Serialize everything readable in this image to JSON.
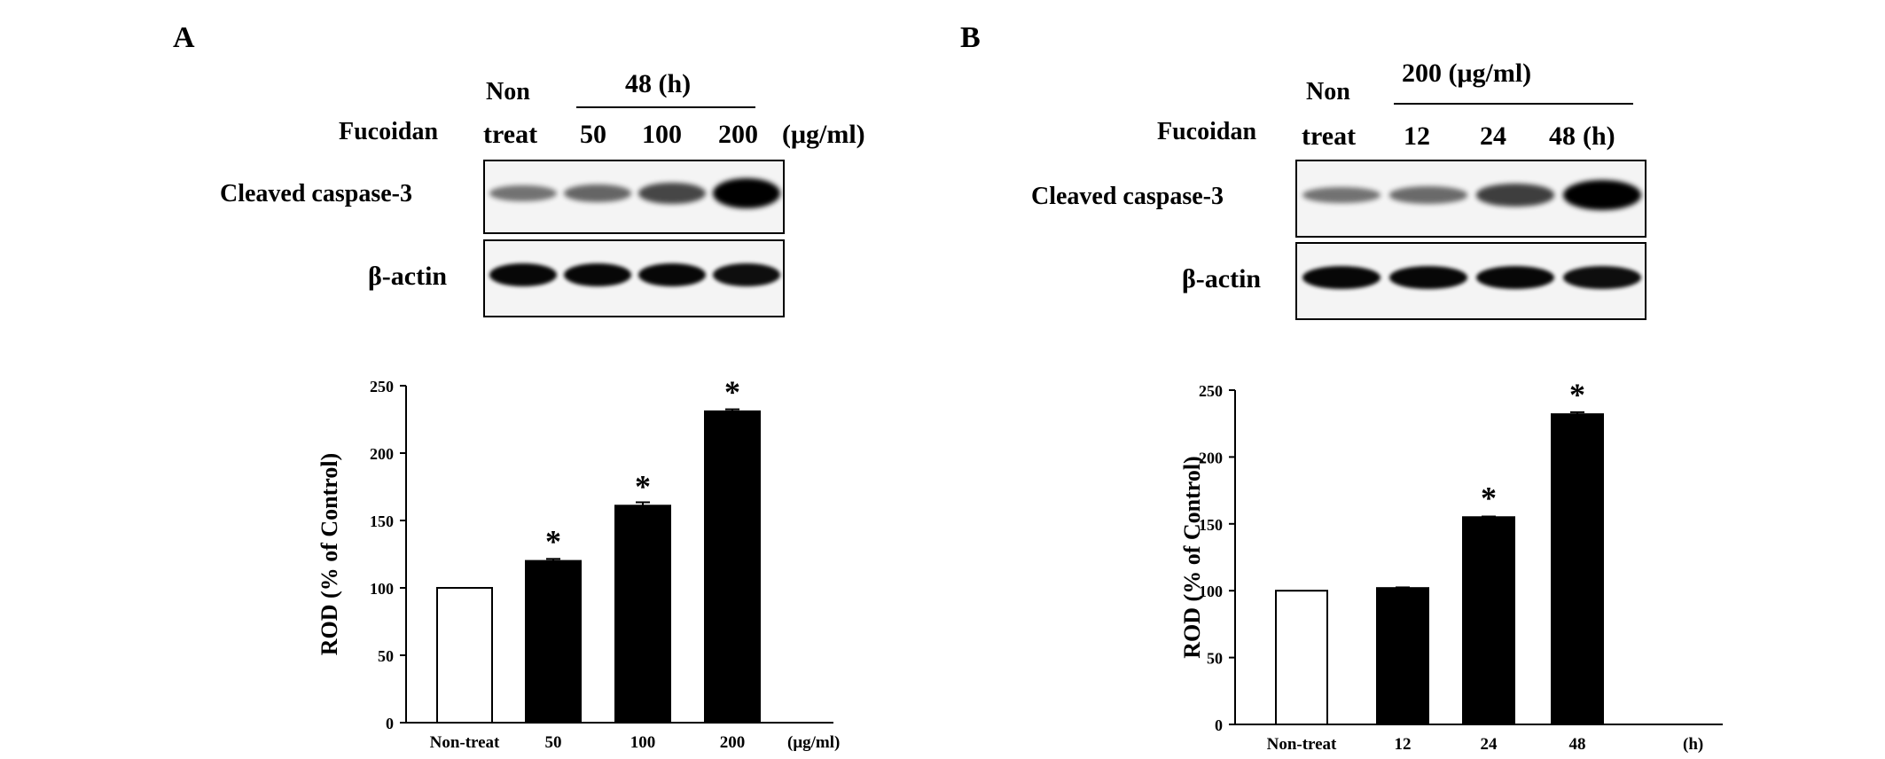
{
  "panels": [
    {
      "id": "A",
      "label": "A",
      "blot": {
        "group_header": "48 (h)",
        "row_label": "Fucoidan",
        "unit": "(μg/ml)",
        "lanes": [
          {
            "top": "Non",
            "bottom": "treat"
          },
          {
            "top": "",
            "bottom": "50"
          },
          {
            "top": "",
            "bottom": "100"
          },
          {
            "top": "",
            "bottom": "200"
          }
        ],
        "bands": [
          {
            "name": "Cleaved caspase-3",
            "intensities": [
              0.28,
              0.35,
              0.55,
              1.0
            ]
          },
          {
            "name": "β-actin",
            "intensities": [
              0.95,
              0.95,
              0.95,
              0.9
            ]
          }
        ]
      }
    },
    {
      "id": "B",
      "label": "B",
      "blot": {
        "group_header": "200 (μg/ml)",
        "row_label": "Fucoidan",
        "unit": "(h)",
        "lanes": [
          {
            "top": "Non",
            "bottom": "treat"
          },
          {
            "top": "",
            "bottom": "12"
          },
          {
            "top": "",
            "bottom": "24"
          },
          {
            "top": "",
            "bottom": "48"
          }
        ],
        "bands": [
          {
            "name": "Cleaved caspase-3",
            "intensities": [
              0.28,
              0.33,
              0.6,
              1.0
            ]
          },
          {
            "name": "β-actin",
            "intensities": [
              0.95,
              0.95,
              0.95,
              0.9
            ]
          }
        ]
      }
    }
  ],
  "chart_data": [
    {
      "type": "bar",
      "categories": [
        "Non-treat",
        "50",
        "100",
        "200"
      ],
      "x_unit": "(μg/ml)",
      "values": [
        100,
        120,
        161,
        231
      ],
      "errors": [
        0,
        1.5,
        2.5,
        1.5
      ],
      "significant": [
        false,
        true,
        true,
        true
      ],
      "significance_marker": "*",
      "fills": [
        "#ffffff",
        "#000000",
        "#000000",
        "#000000"
      ],
      "ylabel": "ROD (% of Control)",
      "ylim": [
        0,
        250
      ],
      "yticks": [
        0,
        50,
        100,
        150,
        200,
        250
      ]
    },
    {
      "type": "bar",
      "categories": [
        "Non-treat",
        "12",
        "24",
        "48"
      ],
      "x_unit": "(h)",
      "values": [
        100,
        102,
        155,
        232
      ],
      "errors": [
        0,
        0.5,
        0.5,
        1.5
      ],
      "significant": [
        false,
        false,
        true,
        true
      ],
      "significance_marker": "*",
      "fills": [
        "#ffffff",
        "#000000",
        "#000000",
        "#000000"
      ],
      "ylabel": "ROD (% of Control)",
      "ylim": [
        0,
        250
      ],
      "yticks": [
        0,
        50,
        100,
        150,
        200,
        250
      ]
    }
  ]
}
